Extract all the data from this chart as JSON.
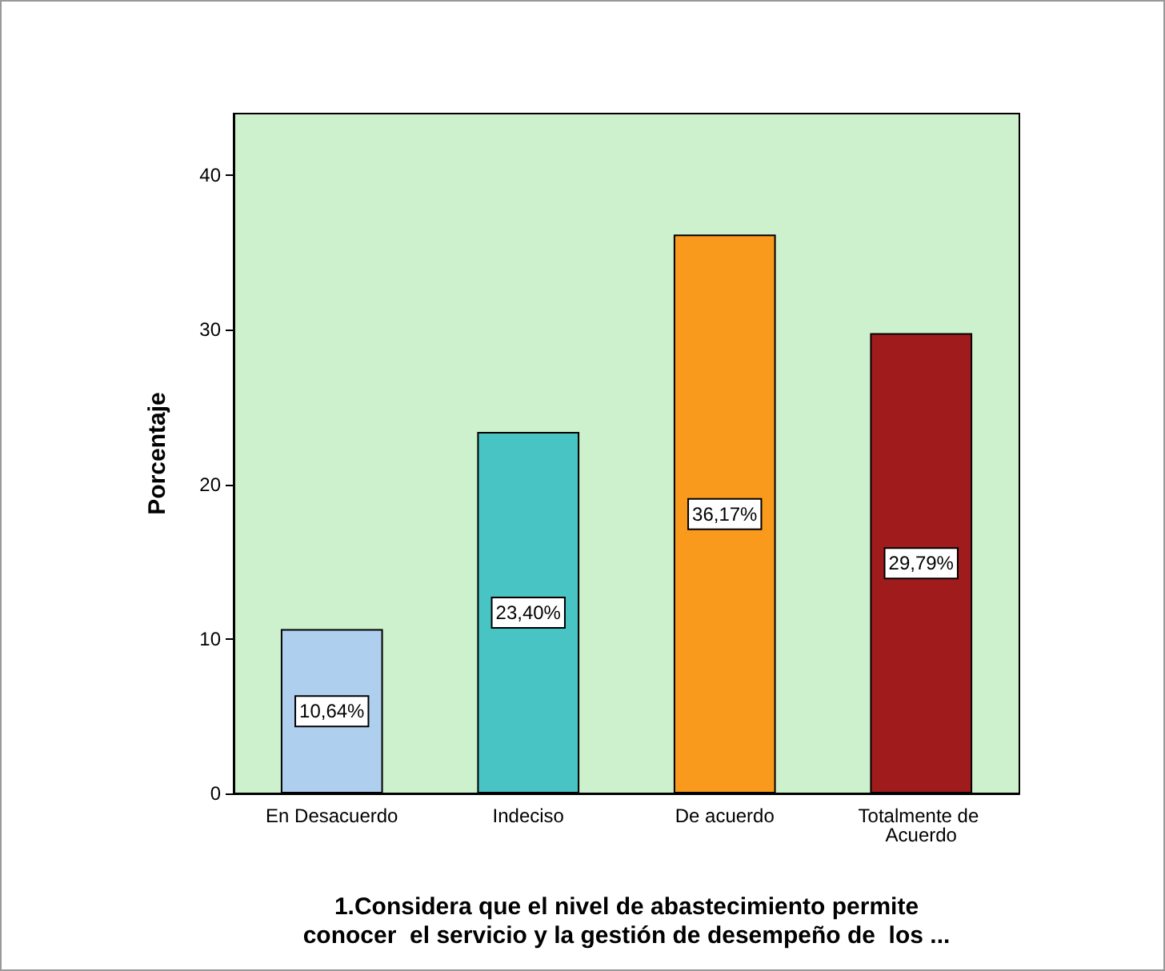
{
  "chart_data": {
    "type": "bar",
    "categories": [
      "En Desacuerdo",
      "Indeciso",
      "De acuerdo",
      "Totalmente de Acuerdo"
    ],
    "values": [
      10.64,
      23.4,
      36.17,
      29.79
    ],
    "colors": [
      "#aecfee",
      "#48c4c4",
      "#f99a1c",
      "#a01c1c"
    ],
    "value_labels": [
      "10,64%",
      "23,40%",
      "36,17%",
      "29,79%"
    ],
    "ylabel": "Porcentaje",
    "xlabel": "1.Considera que el nivel de abastecimiento permite\nconocer  el servicio y la gestión de desempeño de  los ...",
    "ylim": [
      0,
      44
    ],
    "yticks": [
      0,
      10,
      20,
      30,
      40
    ]
  }
}
